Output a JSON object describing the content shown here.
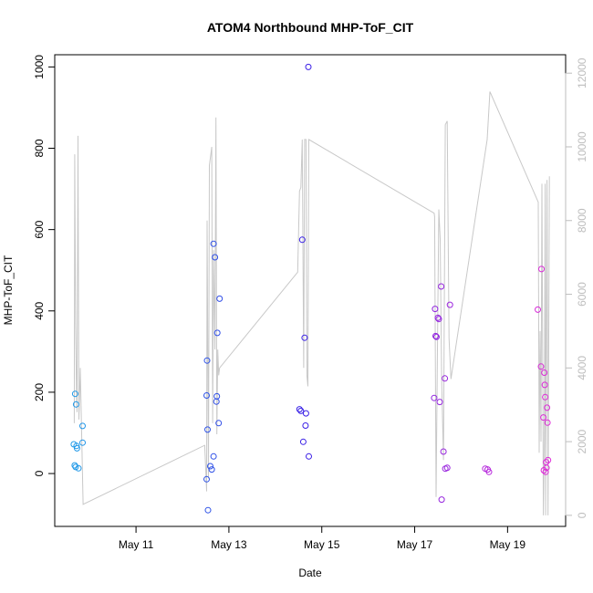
{
  "chart_data": {
    "type": "scatter",
    "title": "ATOM4 Northbound MHP-ToF_CIT",
    "xlabel": "Date",
    "ylabel": "MHP-ToF_CIT",
    "x_ticks": [
      "May 11",
      "May 13",
      "May 15",
      "May 17",
      "May 19"
    ],
    "x_tick_days": [
      11,
      13,
      15,
      17,
      19
    ],
    "xlim": [
      9.25,
      20.25
    ],
    "ylim": [
      -130,
      1030
    ],
    "y_ticks": [
      0,
      200,
      400,
      600,
      800,
      1000
    ],
    "y_right_ticks": [
      0,
      2000,
      4000,
      6000,
      8000,
      10000,
      12000
    ],
    "y_right_lim": [
      -300,
      12500
    ],
    "grid": false,
    "colors": {
      "points_start": "#1e9be8",
      "points_mid": "#3a1ee6",
      "points_end": "#e02ad8",
      "line": "#c8c8c8"
    },
    "points": [
      {
        "x": 9.66,
        "y": 72
      },
      {
        "x": 9.69,
        "y": 196
      },
      {
        "x": 9.71,
        "y": 170
      },
      {
        "x": 9.72,
        "y": 68
      },
      {
        "x": 9.73,
        "y": 62
      },
      {
        "x": 9.68,
        "y": 20
      },
      {
        "x": 9.7,
        "y": 16
      },
      {
        "x": 9.76,
        "y": 13
      },
      {
        "x": 9.85,
        "y": 117
      },
      {
        "x": 9.85,
        "y": 76
      },
      {
        "x": 12.52,
        "y": 192
      },
      {
        "x": 12.53,
        "y": 278
      },
      {
        "x": 12.54,
        "y": 108
      },
      {
        "x": 12.52,
        "y": -14
      },
      {
        "x": 12.55,
        "y": -90
      },
      {
        "x": 12.6,
        "y": 18
      },
      {
        "x": 12.63,
        "y": 10
      },
      {
        "x": 12.67,
        "y": 565
      },
      {
        "x": 12.7,
        "y": 532
      },
      {
        "x": 12.67,
        "y": 42
      },
      {
        "x": 12.73,
        "y": 177
      },
      {
        "x": 12.74,
        "y": 190
      },
      {
        "x": 12.75,
        "y": 346
      },
      {
        "x": 12.8,
        "y": 430
      },
      {
        "x": 12.78,
        "y": 124
      },
      {
        "x": 14.52,
        "y": 158
      },
      {
        "x": 14.55,
        "y": 154
      },
      {
        "x": 14.58,
        "y": 575
      },
      {
        "x": 14.63,
        "y": 334
      },
      {
        "x": 14.66,
        "y": 148
      },
      {
        "x": 14.65,
        "y": 118
      },
      {
        "x": 14.6,
        "y": 78
      },
      {
        "x": 14.71,
        "y": 1000
      },
      {
        "x": 14.72,
        "y": 42
      },
      {
        "x": 17.42,
        "y": 186
      },
      {
        "x": 17.44,
        "y": 405
      },
      {
        "x": 17.45,
        "y": 338
      },
      {
        "x": 17.47,
        "y": 336
      },
      {
        "x": 17.5,
        "y": 383
      },
      {
        "x": 17.52,
        "y": 380
      },
      {
        "x": 17.54,
        "y": 176
      },
      {
        "x": 17.57,
        "y": 460
      },
      {
        "x": 17.58,
        "y": -64
      },
      {
        "x": 17.62,
        "y": 54
      },
      {
        "x": 17.65,
        "y": 234
      },
      {
        "x": 17.66,
        "y": 12
      },
      {
        "x": 17.7,
        "y": 14
      },
      {
        "x": 17.76,
        "y": 415
      },
      {
        "x": 18.52,
        "y": 12
      },
      {
        "x": 18.57,
        "y": 10
      },
      {
        "x": 18.6,
        "y": 4
      },
      {
        "x": 19.65,
        "y": 403
      },
      {
        "x": 19.73,
        "y": 503
      },
      {
        "x": 19.72,
        "y": 263
      },
      {
        "x": 19.77,
        "y": 138
      },
      {
        "x": 19.79,
        "y": 248
      },
      {
        "x": 19.8,
        "y": 218
      },
      {
        "x": 19.81,
        "y": 188
      },
      {
        "x": 19.78,
        "y": 8
      },
      {
        "x": 19.82,
        "y": 4
      },
      {
        "x": 19.83,
        "y": 28
      },
      {
        "x": 19.85,
        "y": 162
      },
      {
        "x": 19.86,
        "y": 125
      },
      {
        "x": 19.84,
        "y": 14
      },
      {
        "x": 19.87,
        "y": 33
      }
    ],
    "line_series": {
      "axis": "right",
      "x": [
        9.67,
        9.68,
        9.7,
        9.72,
        9.73,
        9.75,
        9.77,
        9.8,
        9.86,
        12.48,
        12.52,
        12.53,
        12.56,
        12.58,
        12.61,
        12.63,
        12.65,
        12.67,
        12.7,
        12.72,
        12.74,
        12.76,
        12.78,
        12.8,
        14.48,
        14.52,
        14.55,
        14.58,
        14.61,
        14.63,
        14.66,
        14.68,
        14.7,
        14.72,
        17.42,
        17.43,
        17.46,
        17.49,
        17.52,
        17.55,
        17.58,
        17.62,
        17.66,
        17.7,
        17.74,
        17.78,
        18.56,
        18.62,
        19.66,
        19.68,
        19.7,
        19.72,
        19.74,
        19.77,
        19.79,
        19.81,
        19.82,
        19.85,
        19.87,
        19.9
      ],
      "y": [
        2500,
        9800,
        5200,
        3200,
        2800,
        10300,
        2600,
        4000,
        300,
        1900,
        650,
        8000,
        1000,
        9500,
        9800,
        10000,
        2500,
        7200,
        4500,
        10800,
        2200,
        4500,
        3800,
        4000,
        6600,
        8800,
        8900,
        10200,
        4000,
        10200,
        10200,
        3800,
        3500,
        10200,
        8200,
        8100,
        500,
        4500,
        8300,
        7500,
        3700,
        1500,
        10600,
        10700,
        4800,
        3700,
        10200,
        11500,
        8500,
        1700,
        5000,
        2000,
        9000,
        0,
        2000,
        9000,
        0,
        9100,
        0,
        9200
      ]
    }
  }
}
